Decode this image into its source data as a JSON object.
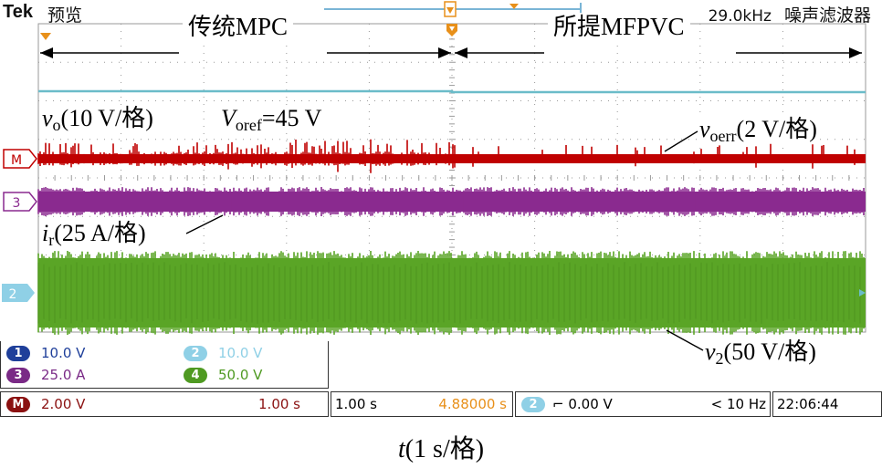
{
  "header": {
    "brand": "Tek",
    "mode": "预览",
    "filter_freq": "29.0kHz",
    "filter_name": "噪声滤波器"
  },
  "annotations": {
    "mode_left_cn": "传统",
    "mode_left_en": "MPC",
    "mode_right_cn": "所提",
    "mode_right_en": "MFPVC",
    "vo_sym": "v",
    "vo_sub": "o",
    "vo_scale": "(10 V/格)",
    "vref_sym": "V",
    "vref_sub": "oref",
    "vref_val": "=45 V",
    "verr_sym": "v",
    "verr_sub": "oerr",
    "verr_scale": "(2 V/格)",
    "ir_sym": "i",
    "ir_sub": "r",
    "ir_scale": "(25 A/格)",
    "v2_sym": "v",
    "v2_sub": "2",
    "v2_scale": "(50 V/格)"
  },
  "markers": {
    "math": "M",
    "ch3": "3",
    "ch2": "2"
  },
  "channels": [
    {
      "badge": "1",
      "value": "10.0 V",
      "color": "#1f3f9a",
      "text_color": "#1f3f9a"
    },
    {
      "badge": "2",
      "value": "10.0 V",
      "color": "#8fd0e6",
      "text_color": "#8fd0e6"
    },
    {
      "badge": "3",
      "value": "25.0 A",
      "color": "#7a2a86",
      "text_color": "#7a2a86"
    },
    {
      "badge": "4",
      "value": "50.0 V",
      "color": "#4f9a22",
      "text_color": "#4f9a22"
    }
  ],
  "status_bar": {
    "math_badge": "M",
    "math_scale": "2.00 V",
    "math_time": "1.00 s",
    "timebase": "1.00 s",
    "position": "4.88000 s",
    "trig_badge": "2",
    "trig_level": "0.00 V",
    "trig_freq": "< 10 Hz",
    "clock": "22:06:44"
  },
  "x_axis": {
    "sym": "t",
    "scale": "(1 s/格)"
  },
  "colors": {
    "ch1": "#6bbcc9",
    "math": "#c00000",
    "ch3": "#8a2a8f",
    "ch4": "#5aa526",
    "position": "#e8901a",
    "grid": "#9a9a9a"
  }
}
